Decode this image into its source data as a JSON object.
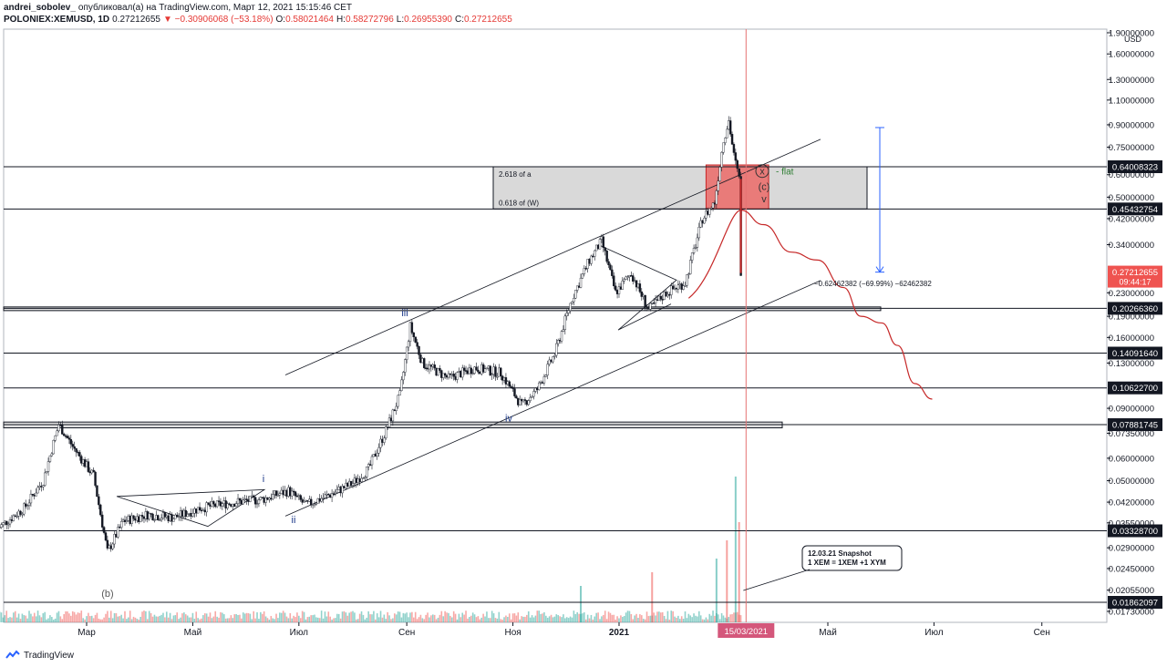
{
  "header": {
    "author": "andrei_sobolev_",
    "published": "опубликовал(а) на TradingView.com, Март 12, 2021 15:15:46 CET",
    "symbol": "POLONIEX:XEMUSD, 1D",
    "last": "0.27212655",
    "change": "▼ −0.30906068 (−53.18%)",
    "o_label": "O:",
    "o_value": "0.58021464",
    "h_label": "H:",
    "h_value": "0.58272796",
    "l_label": "L:",
    "l_value": "0.26955390",
    "c_label": "C:",
    "c_value": "0.27212655"
  },
  "footer": {
    "brand": "TradingView"
  },
  "chart_data": {
    "type": "candlestick",
    "symbol": "POLONIEX:XEMUSD",
    "interval": "1D",
    "y_scale": "log",
    "y_currency": "USD",
    "y_ticks": [
      1.9,
      1.6,
      1.3,
      1.1,
      0.9,
      0.75,
      0.6,
      0.5,
      0.42,
      0.34,
      0.23,
      0.19,
      0.16,
      0.13,
      0.09,
      0.0735,
      0.06,
      0.05,
      0.042,
      0.0355,
      0.029,
      0.0245,
      0.02055,
      0.0173
    ],
    "y_tick_labels": [
      "1.90000000",
      "1.60000000",
      "1.30000000",
      "1.10000000",
      "0.90000000",
      "0.75000000",
      "0.60000000",
      "0.50000000",
      "0.42000000",
      "0.34000000",
      "0.23000000",
      "0.19000000",
      "0.16000000",
      "0.13000000",
      "0.09000000",
      "0.07350000",
      "0.06000000",
      "0.05000000",
      "0.04200000",
      "0.03550000",
      "0.02900000",
      "0.02450000",
      "0.02055000",
      "0.01730000"
    ],
    "x_ticks": [
      {
        "label": "Мар",
        "date": "2020-03-01"
      },
      {
        "label": "Май",
        "date": "2020-05-01"
      },
      {
        "label": "Июл",
        "date": "2020-07-01"
      },
      {
        "label": "Сен",
        "date": "2020-09-01"
      },
      {
        "label": "Ноя",
        "date": "2020-11-01"
      },
      {
        "label": "2021",
        "date": "2021-01-01"
      },
      {
        "label": "Май",
        "date": "2021-05-01"
      },
      {
        "label": "Июл",
        "date": "2021-07-01"
      },
      {
        "label": "Сен",
        "date": "2021-09-01"
      }
    ],
    "crosshair_date_label": "15/03/2021",
    "price_path": [
      [
        "2020-01-10",
        0.034
      ],
      [
        "2020-01-25",
        0.04
      ],
      [
        "2020-02-05",
        0.05
      ],
      [
        "2020-02-14",
        0.079
      ],
      [
        "2020-02-22",
        0.066
      ],
      [
        "2020-03-05",
        0.052
      ],
      [
        "2020-03-13",
        0.028
      ],
      [
        "2020-03-22",
        0.036
      ],
      [
        "2020-04-05",
        0.038
      ],
      [
        "2020-04-20",
        0.037
      ],
      [
        "2020-05-05",
        0.04
      ],
      [
        "2020-05-25",
        0.042
      ],
      [
        "2020-06-10",
        0.043
      ],
      [
        "2020-06-25",
        0.046
      ],
      [
        "2020-07-05",
        0.041
      ],
      [
        "2020-07-20",
        0.045
      ],
      [
        "2020-08-01",
        0.049
      ],
      [
        "2020-08-10",
        0.055
      ],
      [
        "2020-08-20",
        0.075
      ],
      [
        "2020-08-28",
        0.1
      ],
      [
        "2020-09-03",
        0.175
      ],
      [
        "2020-09-10",
        0.13
      ],
      [
        "2020-09-25",
        0.115
      ],
      [
        "2020-10-10",
        0.125
      ],
      [
        "2020-10-25",
        0.12
      ],
      [
        "2020-11-06",
        0.092
      ],
      [
        "2020-11-15",
        0.105
      ],
      [
        "2020-11-25",
        0.14
      ],
      [
        "2020-12-05",
        0.22
      ],
      [
        "2020-12-15",
        0.3
      ],
      [
        "2020-12-22",
        0.35
      ],
      [
        "2020-12-30",
        0.23
      ],
      [
        "2021-01-08",
        0.27
      ],
      [
        "2021-01-18",
        0.2
      ],
      [
        "2021-01-28",
        0.23
      ],
      [
        "2021-02-08",
        0.25
      ],
      [
        "2021-02-18",
        0.42
      ],
      [
        "2021-02-25",
        0.48
      ],
      [
        "2021-03-02",
        0.8
      ],
      [
        "2021-03-05",
        0.93
      ],
      [
        "2021-03-08",
        0.7
      ],
      [
        "2021-03-11",
        0.58
      ],
      [
        "2021-03-12",
        0.272
      ]
    ],
    "volume_spike_dates": [
      "2020-12-10",
      "2021-01-20",
      "2021-02-26",
      "2021-03-04",
      "2021-03-09",
      "2021-03-11"
    ],
    "projection_path": [
      [
        "2021-03-12",
        0.45
      ],
      [
        "2021-03-25",
        0.4
      ],
      [
        "2021-04-10",
        0.32
      ],
      [
        "2021-04-25",
        0.3
      ],
      [
        "2021-05-10",
        0.24
      ],
      [
        "2021-05-20",
        0.19
      ],
      [
        "2021-06-01",
        0.18
      ],
      [
        "2021-06-10",
        0.15
      ],
      [
        "2021-06-20",
        0.11
      ],
      [
        "2021-06-30",
        0.097
      ]
    ],
    "horizontal_levels": [
      {
        "price": 0.64008323,
        "label": "0.64008323"
      },
      {
        "price": 0.45432754,
        "label": "0.45432754"
      },
      {
        "price": 0.2026636,
        "label": "0.20266360"
      },
      {
        "price": 0.1409164,
        "label": "0.14091640"
      },
      {
        "price": 0.106227,
        "label": "0.10622700"
      },
      {
        "price": 0.07881745,
        "label": "0.07881745"
      },
      {
        "price": 0.033287,
        "label": "0.03328700"
      },
      {
        "price": 0.01862097,
        "label": "0.01862097"
      }
    ],
    "current_price": {
      "label": "0.27212655",
      "countdown": "09:44:17"
    },
    "fib_box": {
      "top_label": "2.618 of a",
      "bottom_label": "0.618 of (W)"
    },
    "wave_labels": [
      "(b)",
      "i",
      "ii",
      "iii",
      "iv",
      "v",
      "(c)",
      "x"
    ],
    "flat_label": "- flat",
    "measure_label": "−0.62462382 (−69.99%) −62462382",
    "annotation": {
      "line1": "12.03.21 Snapshot",
      "line2": "1 XEM = 1XEM +1 XYM"
    },
    "colors": {
      "up": "#26a69a",
      "down": "#ef5350",
      "projection": "#c62828",
      "zone": "#ef5350",
      "measure": "#2962ff",
      "level_badge": "#131722",
      "current_badge": "#ef5350",
      "volume_up": "#26a69a",
      "volume_down": "#ef5350"
    }
  }
}
